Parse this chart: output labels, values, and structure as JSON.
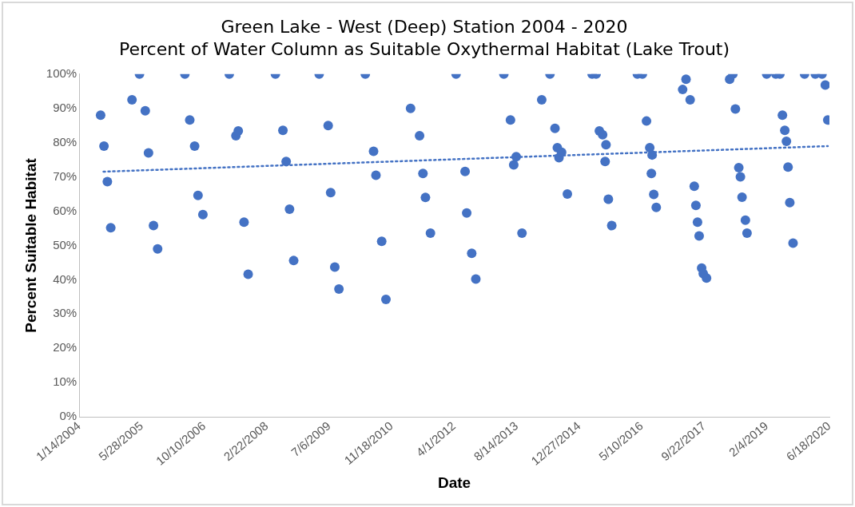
{
  "chart_data": {
    "type": "scatter",
    "title": "Green Lake - West (Deep) Station 2004 - 2020",
    "subtitle": "Percent of Water Column as Suitable Oxythermal Habitat (Lake Trout)",
    "xlabel": "Date",
    "ylabel": "Percent Suitable Habitat",
    "xlim": [
      "2004-01-14",
      "2020-06-18"
    ],
    "xticks": [
      {
        "value": "2004-01-14",
        "label": "1/14/2004"
      },
      {
        "value": "2005-05-28",
        "label": "5/28/2005"
      },
      {
        "value": "2006-10-10",
        "label": "10/10/2006"
      },
      {
        "value": "2008-02-22",
        "label": "2/22/2008"
      },
      {
        "value": "2009-07-06",
        "label": "7/6/2009"
      },
      {
        "value": "2010-11-18",
        "label": "11/18/2010"
      },
      {
        "value": "2012-04-01",
        "label": "4/1/2012"
      },
      {
        "value": "2013-08-14",
        "label": "8/14/2013"
      },
      {
        "value": "2014-12-27",
        "label": "12/27/2014"
      },
      {
        "value": "2016-05-10",
        "label": "5/10/2016"
      },
      {
        "value": "2017-09-22",
        "label": "9/22/2017"
      },
      {
        "value": "2019-02-04",
        "label": "2/4/2019"
      },
      {
        "value": "2020-06-18",
        "label": "6/18/2020"
      }
    ],
    "ylim": [
      0,
      100
    ],
    "yticks": [
      {
        "value": 0,
        "label": "0%"
      },
      {
        "value": 10,
        "label": "10%"
      },
      {
        "value": 20,
        "label": "20%"
      },
      {
        "value": 30,
        "label": "30%"
      },
      {
        "value": 40,
        "label": "40%"
      },
      {
        "value": 50,
        "label": "50%"
      },
      {
        "value": 60,
        "label": "60%"
      },
      {
        "value": 70,
        "label": "70%"
      },
      {
        "value": 80,
        "label": "80%"
      },
      {
        "value": 90,
        "label": "90%"
      },
      {
        "value": 100,
        "label": "100%"
      }
    ],
    "grid": false,
    "legend": false,
    "marker": "circle",
    "series": [
      {
        "color": "#4472c4",
        "x": [
          "2004-07-03",
          "2004-07-30",
          "2004-08-26",
          "2004-09-22",
          "2005-03-11",
          "2005-05-10",
          "2005-06-25",
          "2005-07-21",
          "2005-08-30",
          "2005-10-02",
          "2006-05-08",
          "2006-06-16",
          "2006-07-25",
          "2006-08-21",
          "2006-09-29",
          "2007-04-28",
          "2007-06-20",
          "2007-07-09",
          "2007-08-24",
          "2007-09-26",
          "2008-05-01",
          "2008-06-30",
          "2008-07-26",
          "2008-08-22",
          "2008-09-24",
          "2009-04-16",
          "2009-06-27",
          "2009-07-17",
          "2009-08-19",
          "2009-09-21",
          "2010-04-20",
          "2010-06-25",
          "2010-07-14",
          "2010-08-29",
          "2010-10-02",
          "2011-04-17",
          "2011-06-28",
          "2011-07-25",
          "2011-08-14",
          "2011-09-23",
          "2012-04-15",
          "2012-06-26",
          "2012-07-09",
          "2012-08-18",
          "2012-09-20",
          "2013-05-02",
          "2013-06-24",
          "2013-07-20",
          "2013-08-09",
          "2013-09-24",
          "2014-03-01",
          "2014-05-06",
          "2014-06-15",
          "2014-07-04",
          "2014-07-17",
          "2014-08-07",
          "2014-09-22",
          "2015-04-08",
          "2015-05-10",
          "2015-06-05",
          "2015-07-01",
          "2015-07-21",
          "2015-07-28",
          "2015-08-16",
          "2015-09-12",
          "2016-04-04",
          "2016-05-14",
          "2016-06-16",
          "2016-07-12",
          "2016-07-25",
          "2016-07-31",
          "2016-08-13",
          "2016-09-02",
          "2017-04-01",
          "2017-04-28",
          "2017-05-31",
          "2017-07-03",
          "2017-07-16",
          "2017-07-29",
          "2017-08-11",
          "2017-08-31",
          "2017-09-13",
          "2017-10-09",
          "2018-04-12",
          "2018-05-08",
          "2018-05-28",
          "2018-06-24",
          "2018-07-07",
          "2018-07-20",
          "2018-08-16",
          "2018-08-29",
          "2019-02-02",
          "2019-04-16",
          "2019-05-19",
          "2019-06-08",
          "2019-06-27",
          "2019-07-10",
          "2019-07-23",
          "2019-08-06",
          "2019-09-01",
          "2019-12-02",
          "2020-02-26",
          "2020-04-20",
          "2020-05-16",
          "2020-06-05"
        ],
        "values": [
          88,
          79,
          68.6,
          55.2,
          92.5,
          100,
          89.3,
          77,
          55.8,
          49,
          100,
          86.6,
          79,
          64.6,
          59,
          100,
          82,
          83.4,
          56.8,
          41.6,
          100,
          83.6,
          74.5,
          60.6,
          45.6,
          100,
          85,
          65.4,
          43.7,
          37.3,
          100,
          77.5,
          70.5,
          51.2,
          34.3,
          90,
          82,
          71,
          64,
          53.6,
          100,
          71.6,
          59.5,
          47.7,
          40.2,
          100,
          86.6,
          73.5,
          75.9,
          53.6,
          92.5,
          100,
          84.2,
          78.5,
          75.6,
          77.2,
          65,
          100,
          100,
          83.4,
          82.3,
          74.5,
          79.4,
          63.5,
          55.8,
          100,
          100,
          86.3,
          78.5,
          71,
          76.4,
          64.9,
          61.1,
          95.5,
          98.5,
          92.5,
          67.3,
          61.7,
          56.8,
          52.8,
          43.4,
          41.8,
          40.5,
          98.5,
          100,
          89.8,
          72.7,
          70,
          64.1,
          57.4,
          53.6,
          100,
          100,
          100,
          88,
          83.6,
          80.4,
          72.9,
          62.5,
          50.7,
          100,
          100,
          100,
          96.8,
          86.6
        ]
      },
      {
        "type": "line",
        "color": "#4472c4",
        "marker": "none",
        "line_style": "dotted",
        "x": [
          "2004-07-03",
          "2020-06-05"
        ],
        "values": [
          71.5,
          79
        ]
      }
    ]
  }
}
